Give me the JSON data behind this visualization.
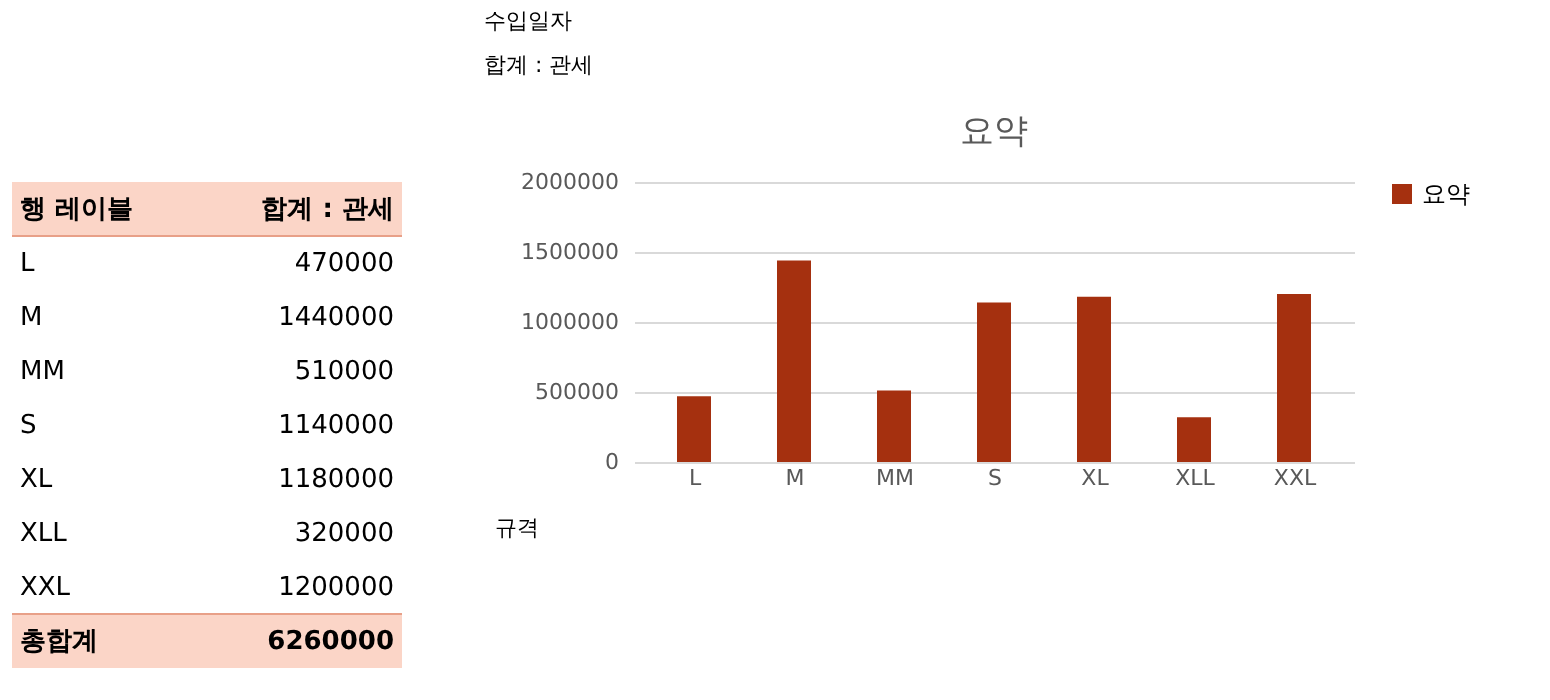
{
  "chart_data": {
    "type": "bar",
    "title": "요약",
    "xlabel": "규격",
    "categories": [
      "L",
      "M",
      "MM",
      "S",
      "XL",
      "XLL",
      "XXL"
    ],
    "series": [
      {
        "name": "요약",
        "color": "#a5300f",
        "values": [
          470000,
          1440000,
          510000,
          1140000,
          1180000,
          320000,
          1200000
        ]
      }
    ],
    "ylim": [
      0,
      2000000
    ],
    "yticks": [
      0,
      500000,
      1000000,
      1500000,
      2000000
    ],
    "grid": "y",
    "legend": "right",
    "annotations": [
      "행 레이블",
      "합계 : 관세",
      "470000",
      "1440000",
      "510000",
      "1140000",
      "1180000",
      "320000",
      "1200000",
      "총합계",
      "6260000",
      "수입일자",
      "합계 : 관세"
    ]
  }
}
